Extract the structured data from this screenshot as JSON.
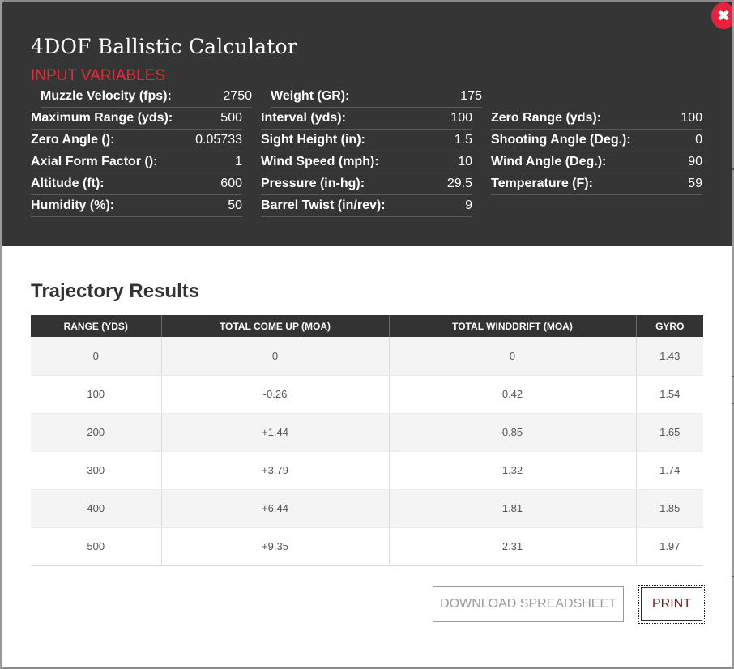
{
  "modal": {
    "title": "4DOF Ballistic Calculator",
    "section_label": "INPUT VARIABLES",
    "close_symbol": "✖",
    "close_icon": "close-icon"
  },
  "inputs": {
    "muzzle_velocity": {
      "label": "Muzzle Velocity (fps):",
      "value": "2750"
    },
    "weight": {
      "label": "Weight (GR):",
      "value": "175"
    },
    "maximum_range": {
      "label": "Maximum Range (yds):",
      "value": "500"
    },
    "interval": {
      "label": "Interval (yds):",
      "value": "100"
    },
    "zero_range": {
      "label": "Zero Range (yds):",
      "value": "100"
    },
    "zero_angle": {
      "label": "Zero Angle ():",
      "value": "0.05733"
    },
    "sight_height": {
      "label": "Sight Height (in):",
      "value": "1.5"
    },
    "shooting_angle": {
      "label": "Shooting Angle (Deg.):",
      "value": "0"
    },
    "axial_form_factor": {
      "label": "Axial Form Factor ():",
      "value": "1"
    },
    "wind_speed": {
      "label": "Wind Speed (mph):",
      "value": "10"
    },
    "wind_angle": {
      "label": "Wind Angle (Deg.):",
      "value": "90"
    },
    "altitude": {
      "label": "Altitude (ft):",
      "value": "600"
    },
    "pressure": {
      "label": "Pressure (in-hg):",
      "value": "29.5"
    },
    "temperature": {
      "label": "Temperature (F):",
      "value": "59"
    },
    "humidity": {
      "label": "Humidity (%):",
      "value": "50"
    },
    "barrel_twist": {
      "label": "Barrel Twist (in/rev):",
      "value": "9"
    }
  },
  "results": {
    "title": "Trajectory Results",
    "columns": [
      "RANGE (YDS)",
      "TOTAL COME UP (MOA)",
      "TOTAL WINDDRIFT (MOA)",
      "GYRO"
    ],
    "rows": [
      [
        "0",
        "0",
        "0",
        "1.43"
      ],
      [
        "100",
        "-0.26",
        "0.42",
        "1.54"
      ],
      [
        "200",
        "+1.44",
        "0.85",
        "1.65"
      ],
      [
        "300",
        "+3.79",
        "1.32",
        "1.74"
      ],
      [
        "400",
        "+6.44",
        "1.81",
        "1.85"
      ],
      [
        "500",
        "+9.35",
        "2.31",
        "1.97"
      ]
    ]
  },
  "actions": {
    "download_label": "DOWNLOAD SPREADSHEET",
    "print_label": "PRINT"
  },
  "colors": {
    "header_bg": "#353535",
    "accent_red": "#e52b3a",
    "close_red": "#e8203a",
    "table_header_bg": "#333333"
  }
}
